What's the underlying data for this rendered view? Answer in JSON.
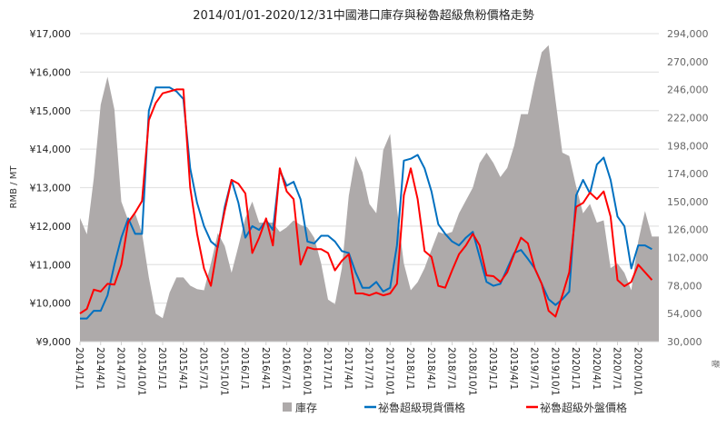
{
  "chart_data": {
    "type": "area+line",
    "title": "2014/01/01-2020/12/31中國港口庫存與秘魯超級魚粉價格走勢",
    "ylabel": "RMB / MT",
    "y2label": "噸",
    "ylim": [
      9000,
      17000
    ],
    "y2lim": [
      30000,
      294000
    ],
    "yticks": [
      "¥9,000",
      "¥10,000",
      "¥11,000",
      "¥12,000",
      "¥13,000",
      "¥14,000",
      "¥15,000",
      "¥16,000",
      "¥17,000"
    ],
    "y2ticks": [
      "30,000",
      "54,000",
      "78,000",
      "102,000",
      "126,000",
      "150,000",
      "174,000",
      "198,000",
      "222,000",
      "246,000",
      "270,000",
      "294,000"
    ],
    "xrange": [
      "2014/1/1",
      "2020/12/31"
    ],
    "xticks": [
      "2014/1/1",
      "2014/4/1",
      "2014/7/1",
      "2014/10/1",
      "2015/1/1",
      "2015/4/1",
      "2015/7/1",
      "2015/10/1",
      "2016/1/1",
      "2016/4/1",
      "2016/7/1",
      "2016/10/1",
      "2017/1/1",
      "2017/4/1",
      "2017/7/1",
      "2017/10/1",
      "2018/1/1",
      "2018/4/1",
      "2018/7/1",
      "2018/10/1",
      "2019/1/1",
      "2019/4/1",
      "2019/7/1",
      "2019/10/1",
      "2020/1/1",
      "2020/4/1",
      "2020/7/1",
      "2020/10/1"
    ],
    "grid": true,
    "legend_position": "bottom",
    "colors": {
      "inventory": "#aeaaaa",
      "spot": "#0070c0",
      "cnf": "#ff0000",
      "grid": "#e3e3e3"
    },
    "x": [
      "2014/1",
      "2014/2",
      "2014/3",
      "2014/4",
      "2014/5",
      "2014/6",
      "2014/7",
      "2014/8",
      "2014/9",
      "2014/10",
      "2014/11",
      "2014/12",
      "2015/1",
      "2015/2",
      "2015/3",
      "2015/4",
      "2015/5",
      "2015/6",
      "2015/7",
      "2015/8",
      "2015/9",
      "2015/10",
      "2015/11",
      "2015/12",
      "2016/1",
      "2016/2",
      "2016/3",
      "2016/4",
      "2016/5",
      "2016/6",
      "2016/7",
      "2016/8",
      "2016/9",
      "2016/10",
      "2016/11",
      "2016/12",
      "2017/1",
      "2017/2",
      "2017/3",
      "2017/4",
      "2017/5",
      "2017/6",
      "2017/7",
      "2017/8",
      "2017/9",
      "2017/10",
      "2017/11",
      "2017/12",
      "2018/1",
      "2018/2",
      "2018/3",
      "2018/4",
      "2018/5",
      "2018/6",
      "2018/7",
      "2018/8",
      "2018/9",
      "2018/10",
      "2018/11",
      "2018/12",
      "2019/1",
      "2019/2",
      "2019/3",
      "2019/4",
      "2019/5",
      "2019/6",
      "2019/7",
      "2019/8",
      "2019/9",
      "2019/10",
      "2019/11",
      "2019/12",
      "2020/1",
      "2020/2",
      "2020/3",
      "2020/4",
      "2020/5",
      "2020/6",
      "2020/7",
      "2020/8",
      "2020/9",
      "2020/10",
      "2020/11",
      "2020/12"
    ],
    "series": [
      {
        "name": "庫存",
        "kind": "area",
        "axis": "right",
        "values": [
          136000,
          122000,
          170000,
          233000,
          257000,
          229000,
          150000,
          134000,
          140000,
          123000,
          85000,
          54000,
          50000,
          72000,
          85000,
          85000,
          78000,
          75000,
          74000,
          97000,
          123000,
          112000,
          89000,
          112000,
          136000,
          150000,
          132000,
          132000,
          132000,
          124000,
          128000,
          134000,
          130000,
          128000,
          119000,
          97000,
          66000,
          62000,
          93000,
          155000,
          189000,
          175000,
          148000,
          140000,
          194000,
          208000,
          144000,
          97000,
          74000,
          81000,
          93000,
          109000,
          124000,
          122000,
          124000,
          140000,
          151000,
          162000,
          183000,
          192000,
          183000,
          171000,
          179000,
          198000,
          225000,
          225000,
          253000,
          278000,
          284000,
          237000,
          192000,
          189000,
          163000,
          140000,
          148000,
          132000,
          134000,
          93000,
          97000,
          89000,
          74000,
          116000,
          142000,
          120000
        ]
      },
      {
        "name": "祕魯超級現貨價格",
        "kind": "line",
        "axis": "left",
        "values": [
          9600,
          9600,
          9800,
          9800,
          10200,
          11000,
          11700,
          12200,
          11800,
          11800,
          15000,
          15600,
          15600,
          15600,
          15500,
          15300,
          13500,
          12600,
          12000,
          11600,
          11450,
          12500,
          13200,
          12600,
          11700,
          12000,
          11900,
          12150,
          11900,
          13450,
          13050,
          13150,
          12700,
          11600,
          11550,
          11750,
          11750,
          11600,
          11350,
          11300,
          10800,
          10400,
          10400,
          10550,
          10300,
          10400,
          11500,
          13700,
          13750,
          13850,
          13500,
          12900,
          12050,
          11800,
          11600,
          11500,
          11700,
          11850,
          11200,
          10550,
          10450,
          10500,
          10900,
          11300,
          11380,
          11150,
          10900,
          10500,
          10100,
          9950,
          10100,
          10300,
          12800,
          13200,
          12850,
          13600,
          13780,
          13200,
          12250,
          12000,
          10900,
          11500,
          11500,
          11400
        ]
      },
      {
        "name": "祕魯超級外盤價格",
        "kind": "line",
        "axis": "left",
        "values": [
          9730,
          9850,
          10350,
          10300,
          10500,
          10480,
          11000,
          12100,
          12350,
          12650,
          14750,
          15200,
          15450,
          15500,
          15550,
          15550,
          13000,
          11800,
          10900,
          10450,
          11500,
          12400,
          13200,
          13100,
          12850,
          11300,
          11700,
          12200,
          11500,
          13500,
          12900,
          12700,
          11000,
          11450,
          11400,
          11400,
          11300,
          10850,
          11100,
          11270,
          10250,
          10250,
          10200,
          10270,
          10200,
          10250,
          10500,
          12800,
          13500,
          12700,
          11350,
          11200,
          10450,
          10400,
          10850,
          11270,
          11500,
          11800,
          11500,
          10720,
          10700,
          10550,
          10800,
          11270,
          11700,
          11550,
          10900,
          10500,
          9800,
          9650,
          10200,
          10800,
          12500,
          12600,
          12870,
          12700,
          12900,
          12250,
          10600,
          10440,
          10550,
          11000,
          10800,
          10600
        ]
      }
    ]
  }
}
